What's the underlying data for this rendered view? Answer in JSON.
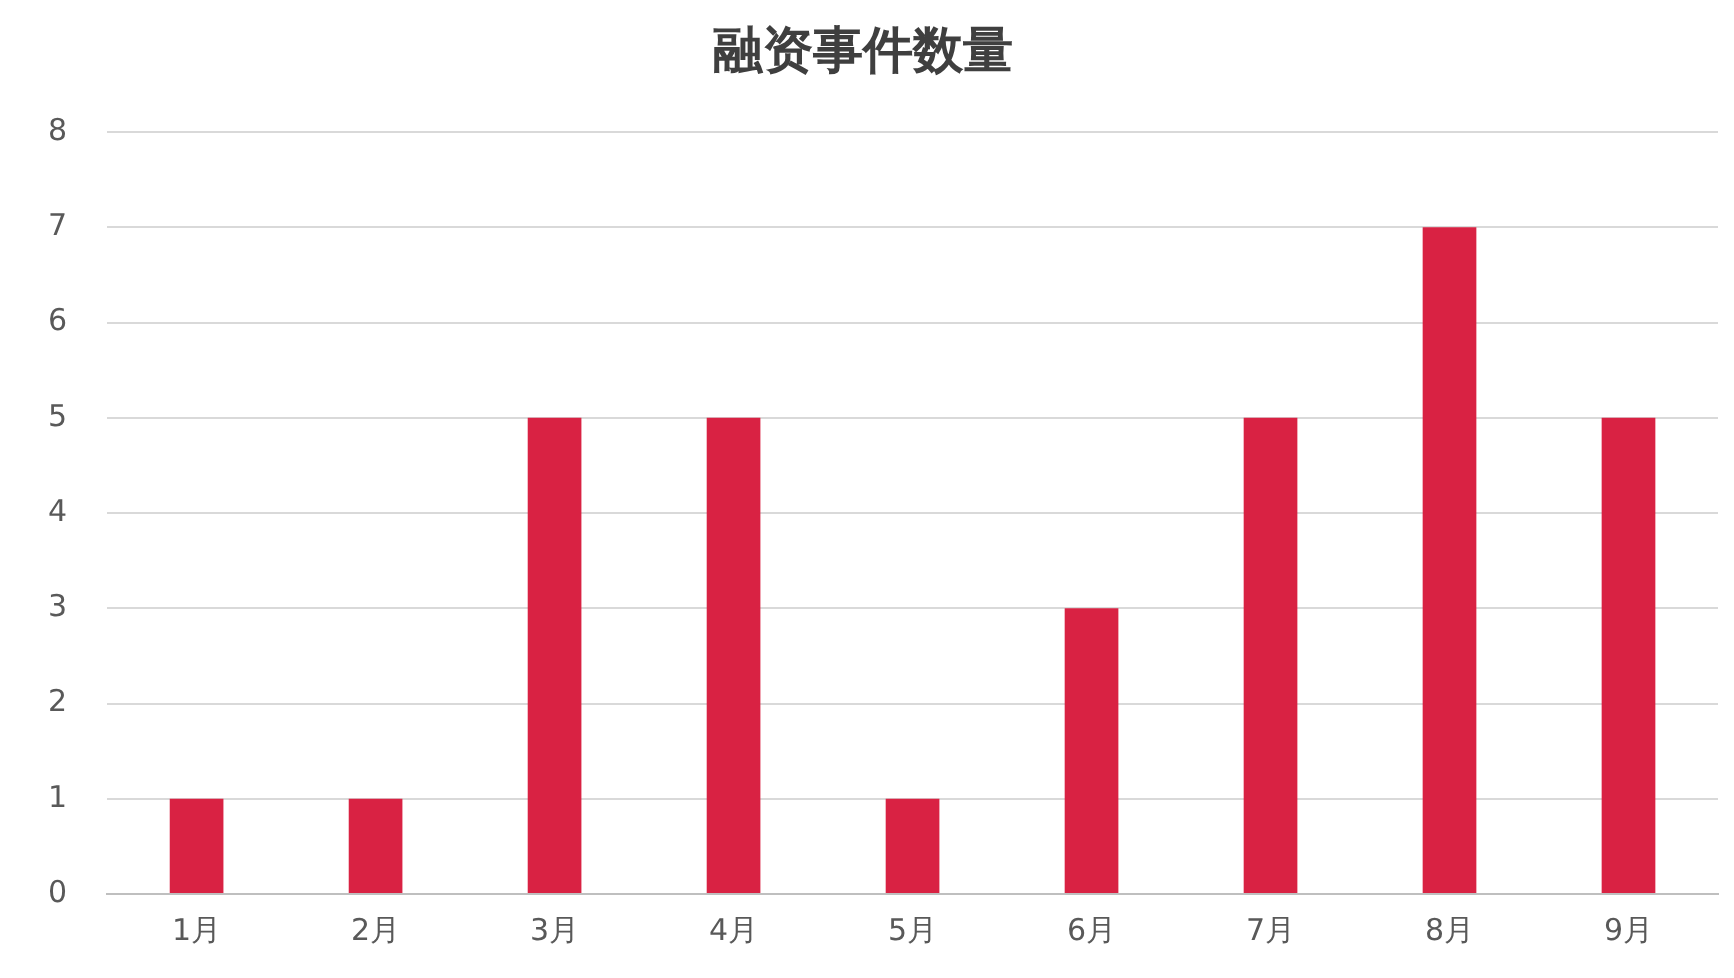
{
  "chart_data": {
    "type": "bar",
    "title": "融资事件数量",
    "categories": [
      "1月",
      "2月",
      "3月",
      "4月",
      "5月",
      "6月",
      "7月",
      "8月",
      "9月"
    ],
    "values": [
      1,
      1,
      5,
      5,
      1,
      3,
      5,
      7,
      5
    ],
    "color": "#d92243",
    "ylim": [
      0,
      8
    ],
    "yticks": [
      0,
      1,
      2,
      3,
      4,
      5,
      6,
      7,
      8
    ],
    "grid": "y",
    "legend": false
  }
}
